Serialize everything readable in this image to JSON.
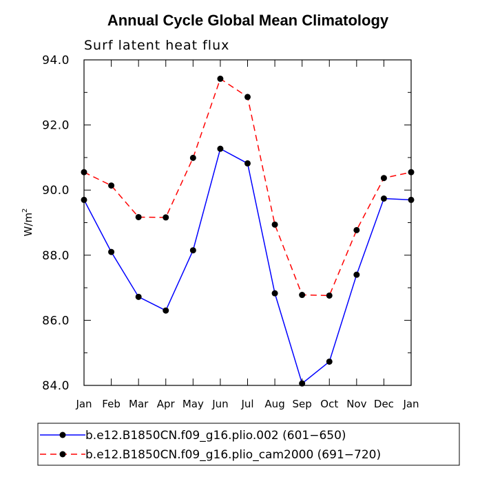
{
  "chart_data": {
    "type": "line",
    "title": "Annual Cycle Global Mean Climatology",
    "subtitle": "Surf latent heat flux",
    "ylabel_main": "W/m",
    "ylabel_sup": "2",
    "ylim": [
      84.0,
      94.0
    ],
    "yticks": [
      "84.0",
      "86.0",
      "88.0",
      "90.0",
      "92.0",
      "94.0"
    ],
    "ytick_values": [
      84.0,
      86.0,
      88.0,
      90.0,
      92.0,
      94.0
    ],
    "categories": [
      "Jan",
      "Feb",
      "Mar",
      "Apr",
      "May",
      "Jun",
      "Jul",
      "Aug",
      "Sep",
      "Oct",
      "Nov",
      "Dec",
      "Jan"
    ],
    "series": [
      {
        "name": "b.e12.B1850CN.f09_g16.plio.002 (601−650)",
        "color": "#0000ff",
        "dash": "solid",
        "values": [
          89.7,
          88.1,
          86.72,
          86.3,
          88.15,
          91.27,
          90.82,
          86.83,
          84.06,
          84.73,
          87.4,
          89.74,
          89.7
        ]
      },
      {
        "name": "b.e12.B1850CN.f09_g16.plio_cam2000 (691−720)",
        "color": "#ff0000",
        "dash": "dashed",
        "values": [
          90.55,
          90.14,
          89.17,
          89.16,
          90.99,
          93.42,
          92.86,
          88.94,
          86.78,
          86.76,
          88.77,
          90.37,
          90.55
        ]
      }
    ]
  }
}
